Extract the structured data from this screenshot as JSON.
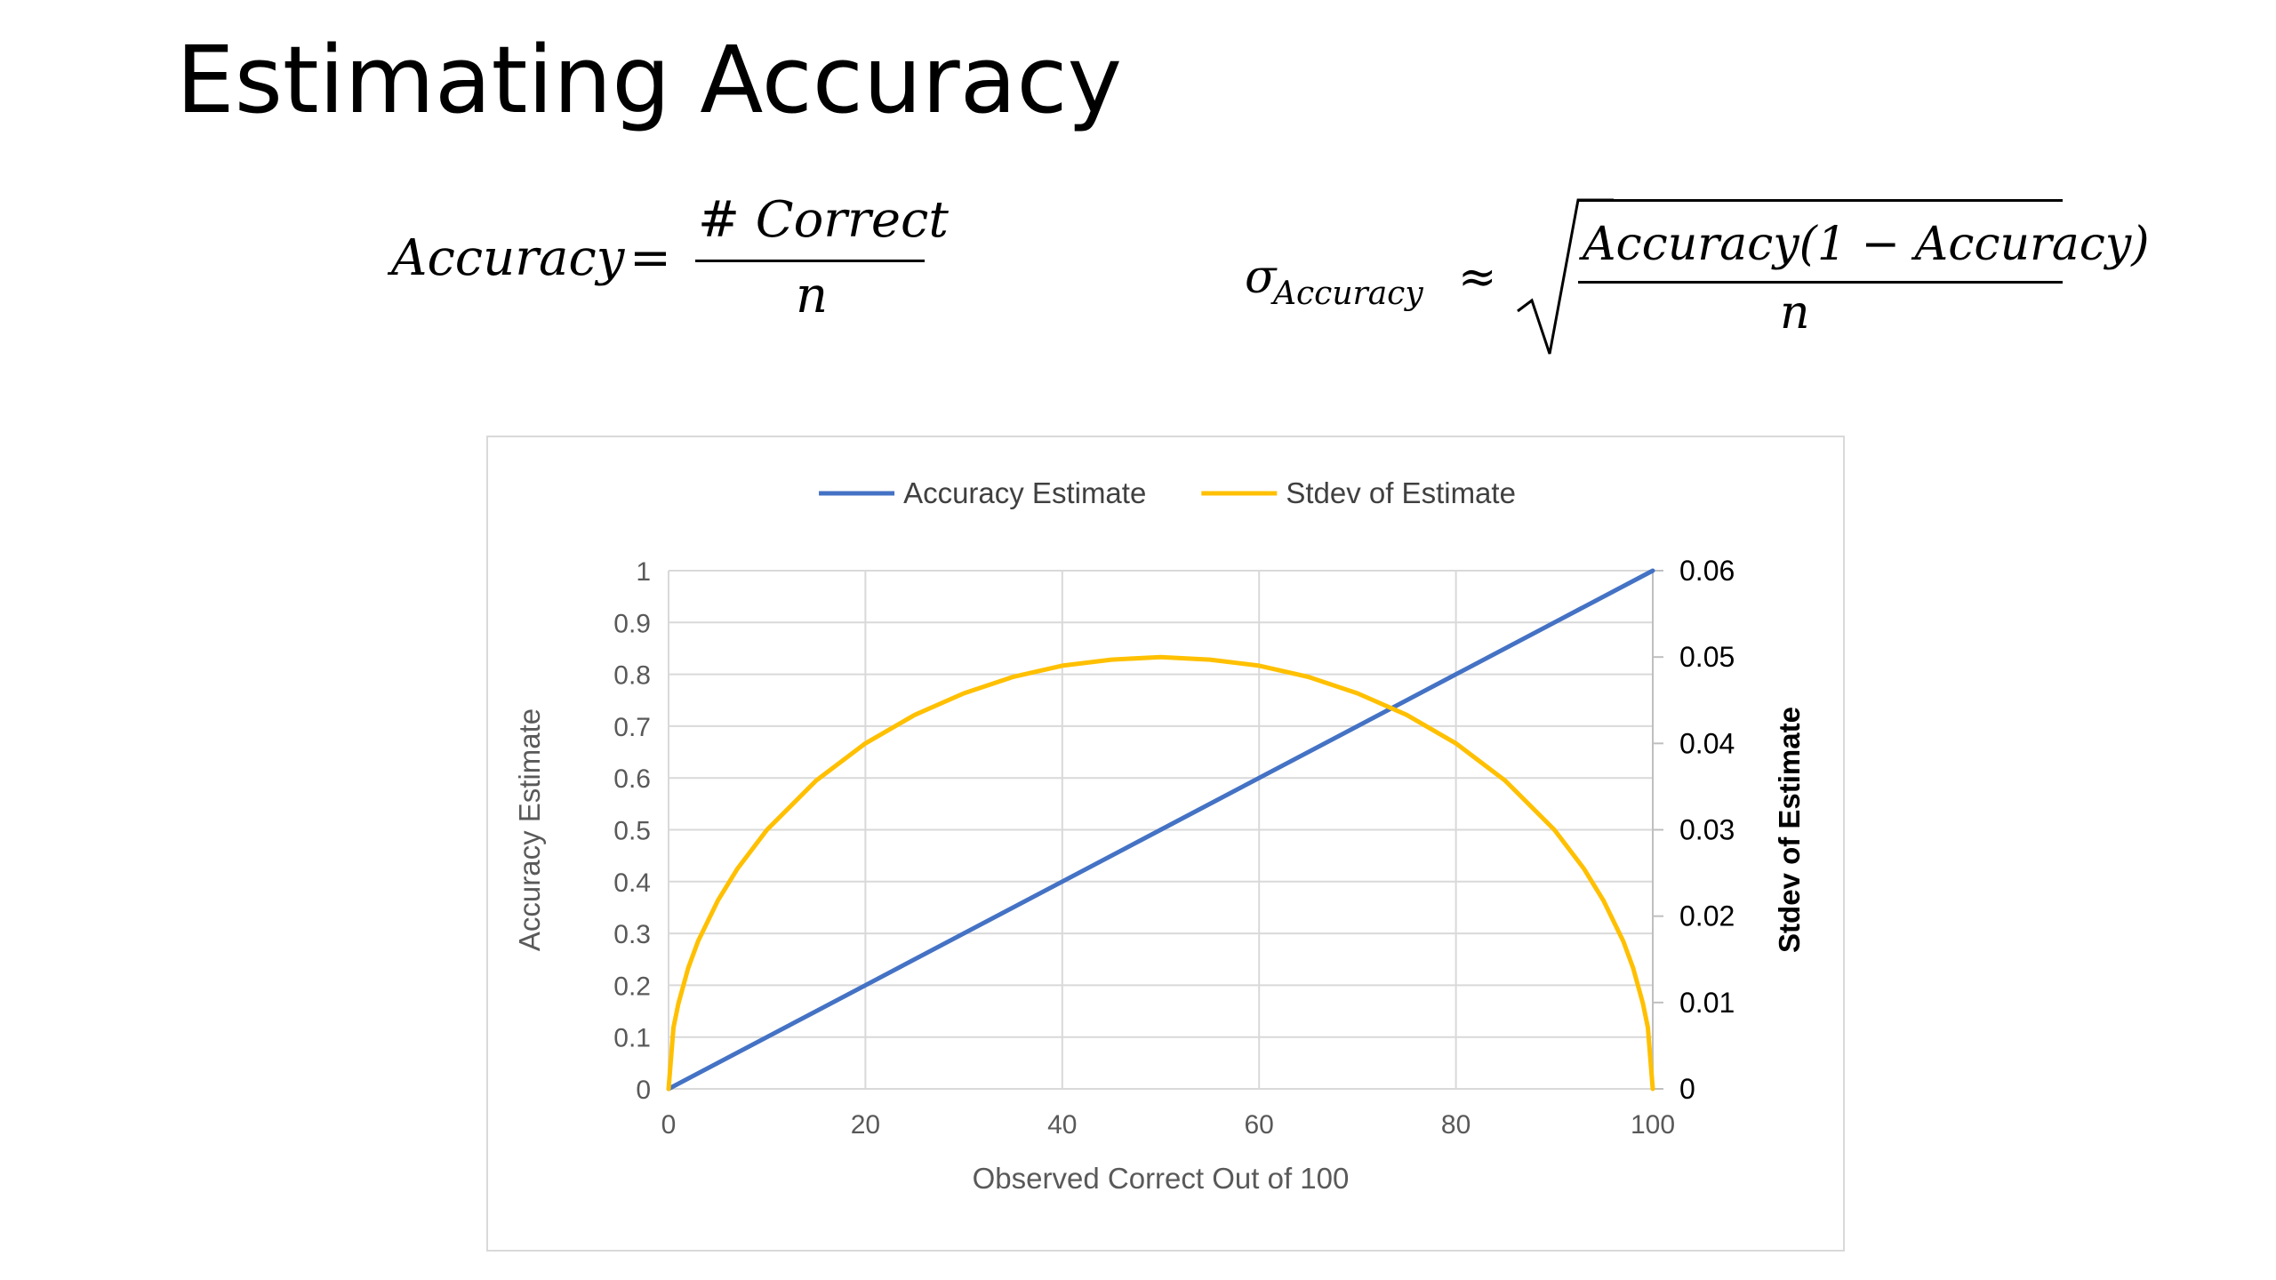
{
  "slide": {
    "title": "Estimating Accuracy"
  },
  "formulas": {
    "accuracy": {
      "lhs": "Accuracy",
      "eq": "=",
      "numerator": "# Correct",
      "denominator": "n"
    },
    "sigma": {
      "symbol": "σ",
      "subscript": "Accuracy",
      "approx": "≈",
      "numerator": "Accuracy(1  − Accuracy)",
      "denominator": "n"
    }
  },
  "chart_data": {
    "type": "line",
    "xlabel": "Observed Correct Out of 100",
    "ylabel": "Accuracy Estimate",
    "y2label": "Stdev of Estimate",
    "xlim": [
      0,
      100
    ],
    "ylim": [
      0,
      1
    ],
    "y2lim": [
      0,
      0.06
    ],
    "x_ticks": [
      "0",
      "20",
      "40",
      "60",
      "80",
      "100"
    ],
    "y_ticks": [
      "0",
      "0.1",
      "0.2",
      "0.3",
      "0.4",
      "0.5",
      "0.6",
      "0.7",
      "0.8",
      "0.9",
      "1"
    ],
    "y2_ticks": [
      "0",
      "0.01",
      "0.02",
      "0.03",
      "0.04",
      "0.05",
      "0.06"
    ],
    "grid": true,
    "legend_position": "top-center",
    "series": [
      {
        "name": "Accuracy Estimate",
        "axis": "left",
        "color": "#4472C4",
        "x": [
          0,
          10,
          20,
          30,
          40,
          50,
          60,
          70,
          80,
          90,
          100
        ],
        "y": [
          0,
          0.1,
          0.2,
          0.3,
          0.4,
          0.5,
          0.6,
          0.7,
          0.8,
          0.9,
          1.0
        ]
      },
      {
        "name": "Stdev of Estimate",
        "axis": "right",
        "color": "#FFC000",
        "x": [
          0,
          0.5,
          1,
          2,
          3,
          5,
          7,
          10,
          15,
          20,
          25,
          30,
          35,
          40,
          45,
          50,
          55,
          60,
          65,
          70,
          75,
          80,
          85,
          90,
          93,
          95,
          97,
          98,
          99,
          99.5,
          100
        ],
        "y": [
          0,
          0.0071,
          0.0099,
          0.014,
          0.0171,
          0.0218,
          0.0255,
          0.03,
          0.0357,
          0.04,
          0.0433,
          0.0458,
          0.0477,
          0.049,
          0.0497,
          0.05,
          0.0497,
          0.049,
          0.0477,
          0.0458,
          0.0433,
          0.04,
          0.0357,
          0.03,
          0.0255,
          0.0218,
          0.0171,
          0.014,
          0.0099,
          0.0071,
          0
        ]
      }
    ]
  }
}
